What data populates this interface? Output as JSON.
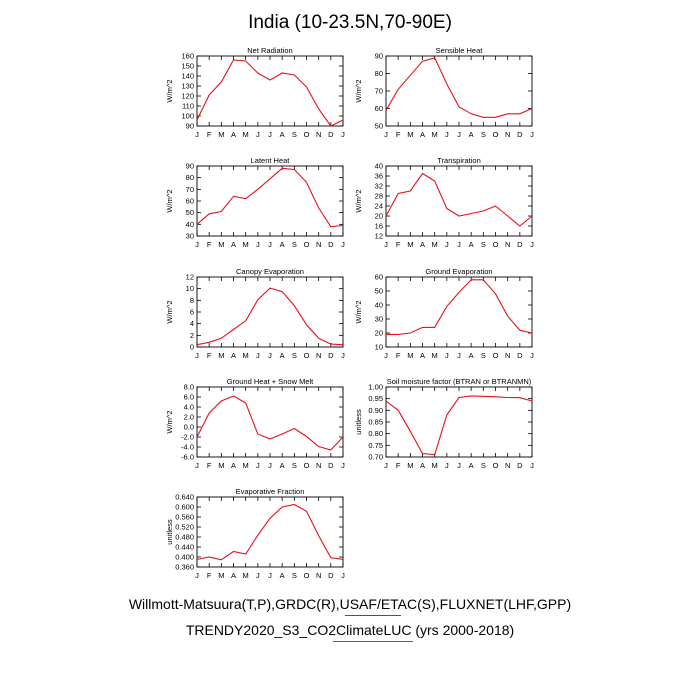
{
  "figure": {
    "title": "India (10-23.5N,70-90E)",
    "footer_line1": "Willmott-Matsuura(T,P),GRDC(R),USAF/ETAC(S),FLUXNET(LHF,GPP)",
    "footer_line2": "TRENDY2020_S3_CO2ClimateLUC (yrs 2000-2018)",
    "series_color": "#e8101a"
  },
  "chart_data": [
    {
      "type": "line",
      "title": "Net Radiation",
      "ylabel": "W/m^2",
      "categories": [
        "J",
        "F",
        "M",
        "A",
        "M",
        "J",
        "J",
        "A",
        "S",
        "O",
        "N",
        "D",
        "J"
      ],
      "values": [
        96,
        121,
        134,
        156,
        155,
        143,
        136,
        143,
        141,
        129,
        107,
        90,
        96
      ],
      "ylim": [
        90,
        160
      ],
      "yticks": [
        "90",
        "100",
        "110",
        "120",
        "130",
        "140",
        "150",
        "160"
      ]
    },
    {
      "type": "line",
      "title": "Sensible Heat",
      "ylabel": "W/m^2",
      "categories": [
        "J",
        "F",
        "M",
        "A",
        "M",
        "J",
        "J",
        "A",
        "S",
        "O",
        "N",
        "D",
        "J"
      ],
      "values": [
        59,
        71,
        79,
        87,
        89,
        74,
        61,
        57,
        55,
        55,
        57,
        57,
        60
      ],
      "ylim": [
        50,
        90
      ],
      "yticks": [
        "50",
        "60",
        "70",
        "80",
        "90"
      ]
    },
    {
      "type": "line",
      "title": "Latent Heat",
      "ylabel": "W/m^2",
      "categories": [
        "J",
        "F",
        "M",
        "A",
        "M",
        "J",
        "J",
        "A",
        "S",
        "O",
        "N",
        "D",
        "J"
      ],
      "values": [
        40,
        49,
        51,
        64,
        62,
        70,
        79,
        88,
        87,
        76,
        54,
        38,
        39
      ],
      "ylim": [
        30,
        90
      ],
      "yticks": [
        "30",
        "40",
        "50",
        "60",
        "70",
        "80",
        "90"
      ]
    },
    {
      "type": "line",
      "title": "Transpiration",
      "ylabel": "W/m^2",
      "categories": [
        "J",
        "F",
        "M",
        "A",
        "M",
        "J",
        "J",
        "A",
        "S",
        "O",
        "N",
        "D",
        "J"
      ],
      "values": [
        20,
        29,
        30,
        37,
        34,
        23,
        20,
        21,
        22,
        24,
        20,
        16,
        20
      ],
      "ylim": [
        12,
        40
      ],
      "yticks": [
        "12",
        "16",
        "20",
        "24",
        "28",
        "32",
        "36",
        "40"
      ]
    },
    {
      "type": "line",
      "title": "Canopy Evaporation",
      "ylabel": "W/m^2",
      "categories": [
        "J",
        "F",
        "M",
        "A",
        "M",
        "J",
        "J",
        "A",
        "S",
        "O",
        "N",
        "D",
        "J"
      ],
      "values": [
        0.4,
        0.8,
        1.5,
        3.0,
        4.5,
        8.1,
        10.1,
        9.5,
        7.1,
        3.8,
        1.5,
        0.5,
        0.4
      ],
      "ylim": [
        0,
        12
      ],
      "yticks": [
        "0",
        "2",
        "4",
        "6",
        "8",
        "10",
        "12"
      ]
    },
    {
      "type": "line",
      "title": "Ground Evaporation",
      "ylabel": "W/m^2",
      "categories": [
        "J",
        "F",
        "M",
        "A",
        "M",
        "J",
        "J",
        "A",
        "S",
        "O",
        "N",
        "D",
        "J"
      ],
      "values": [
        19,
        19,
        20,
        24,
        24,
        39,
        49,
        58,
        58,
        48,
        32,
        22,
        20
      ],
      "ylim": [
        10,
        60
      ],
      "yticks": [
        "10",
        "20",
        "30",
        "40",
        "50",
        "60"
      ]
    },
    {
      "type": "line",
      "title": "Ground Heat + Snow Melt",
      "ylabel": "W/m^2",
      "categories": [
        "J",
        "F",
        "M",
        "A",
        "M",
        "J",
        "J",
        "A",
        "S",
        "O",
        "N",
        "D",
        "J"
      ],
      "values": [
        -2.0,
        2.8,
        5.2,
        6.2,
        4.8,
        -1.4,
        -2.4,
        -1.4,
        -0.3,
        -1.9,
        -3.9,
        -4.6,
        -2.0
      ],
      "ylim": [
        -6,
        8
      ],
      "yticks": [
        "-6.0",
        "-4.0",
        "-2.0",
        "0.0",
        "2.0",
        "4.0",
        "6.0",
        "8.0"
      ]
    },
    {
      "type": "line",
      "title": "Soil moisture factor (BTRAN or BTRANMN)",
      "ylabel": "unitless",
      "categories": [
        "J",
        "F",
        "M",
        "A",
        "M",
        "J",
        "J",
        "A",
        "S",
        "O",
        "N",
        "D",
        "J"
      ],
      "values": [
        0.94,
        0.9,
        0.81,
        0.715,
        0.71,
        0.88,
        0.955,
        0.962,
        0.96,
        0.958,
        0.955,
        0.954,
        0.94
      ],
      "ylim": [
        0.7,
        1.0
      ],
      "yticks": [
        "0.70",
        "0.75",
        "0.80",
        "0.85",
        "0.90",
        "0.95",
        "1.00"
      ]
    },
    {
      "type": "line",
      "title": "Evaporative Fraction",
      "ylabel": "unitless",
      "categories": [
        "J",
        "F",
        "M",
        "A",
        "M",
        "J",
        "J",
        "A",
        "S",
        "O",
        "N",
        "D",
        "J"
      ],
      "values": [
        0.39,
        0.4,
        0.389,
        0.422,
        0.412,
        0.487,
        0.555,
        0.6,
        0.61,
        0.583,
        0.485,
        0.397,
        0.391
      ],
      "ylim": [
        0.36,
        0.64
      ],
      "yticks": [
        "0.360",
        "0.400",
        "0.440",
        "0.480",
        "0.520",
        "0.560",
        "0.600",
        "0.640"
      ]
    }
  ]
}
